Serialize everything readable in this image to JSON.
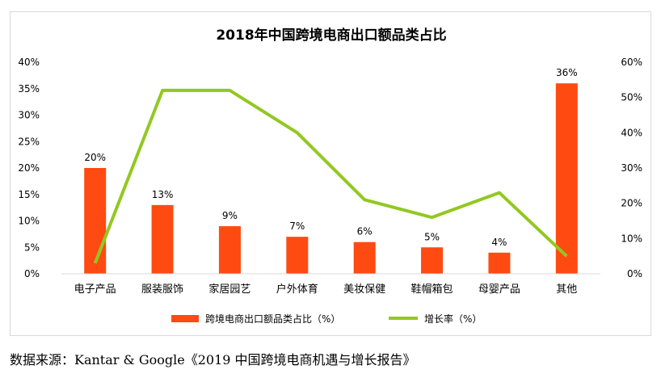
{
  "chart_data": {
    "type": "bar",
    "title": "2018年中国跨境电商出口额品类占比",
    "categories": [
      "电子产品",
      "服装服饰",
      "家居园艺",
      "户外体育",
      "美妆保健",
      "鞋帽箱包",
      "母婴产品",
      "其他"
    ],
    "series": [
      {
        "name": "跨境电商出口额品类占比（%）",
        "type": "bar",
        "axis": "left",
        "color": "#ff4a12",
        "values": [
          20,
          13,
          9,
          7,
          6,
          5,
          4,
          36
        ],
        "labels": [
          "20%",
          "13%",
          "9%",
          "7%",
          "6%",
          "5%",
          "4%",
          "36%"
        ]
      },
      {
        "name": "增长率（%）",
        "type": "line",
        "axis": "right",
        "color": "#92c821",
        "values": [
          3,
          52,
          52,
          40,
          21,
          16,
          23,
          5
        ]
      }
    ],
    "ylim_left": [
      0,
      40
    ],
    "yticks_left": [
      "0%",
      "5%",
      "10%",
      "15%",
      "20%",
      "25%",
      "30%",
      "35%",
      "40%"
    ],
    "ylim_right": [
      0,
      60
    ],
    "yticks_right": [
      "0%",
      "10%",
      "20%",
      "30%",
      "40%",
      "50%",
      "60%"
    ],
    "legend_position": "bottom",
    "grid": false
  },
  "source_note": "数据来源：Kantar & Google《2019 中国跨境电商机遇与增长报告》"
}
